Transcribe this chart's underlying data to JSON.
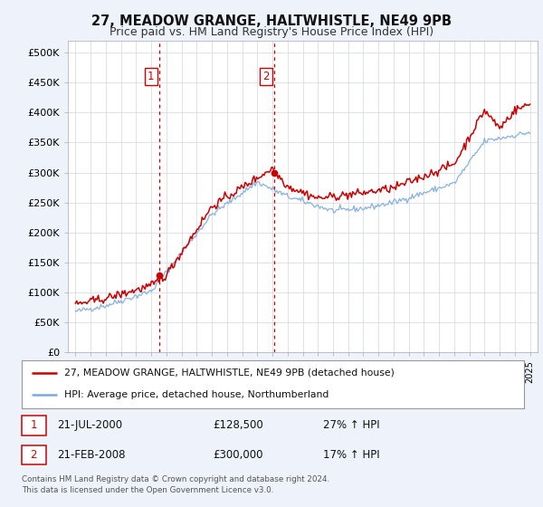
{
  "title": "27, MEADOW GRANGE, HALTWHISTLE, NE49 9PB",
  "subtitle": "Price paid vs. HM Land Registry's House Price Index (HPI)",
  "legend_line1": "27, MEADOW GRANGE, HALTWHISTLE, NE49 9PB (detached house)",
  "legend_line2": "HPI: Average price, detached house, Northumberland",
  "footnote": "Contains HM Land Registry data © Crown copyright and database right 2024.\nThis data is licensed under the Open Government Licence v3.0.",
  "sale1_date": "21-JUL-2000",
  "sale1_price": "£128,500",
  "sale1_hpi": "27% ↑ HPI",
  "sale2_date": "21-FEB-2008",
  "sale2_price": "£300,000",
  "sale2_hpi": "17% ↑ HPI",
  "vline1_x": 2000.54,
  "vline2_x": 2008.13,
  "marker1_x": 2000.54,
  "marker1_y": 128500,
  "marker2_x": 2008.13,
  "marker2_y": 300000,
  "property_color": "#cc0000",
  "hpi_color": "#7aaadd",
  "vline_color": "#cc0000",
  "ylim_min": 0,
  "ylim_max": 520000,
  "yticks": [
    0,
    50000,
    100000,
    150000,
    200000,
    250000,
    300000,
    350000,
    400000,
    450000,
    500000
  ],
  "xlim_min": 1994.5,
  "xlim_max": 2025.5,
  "background_color": "#eef2fa",
  "plot_bg_color": "#ffffff",
  "grid_color": "#d8dde8",
  "title_fontsize": 10.5,
  "subtitle_fontsize": 9
}
